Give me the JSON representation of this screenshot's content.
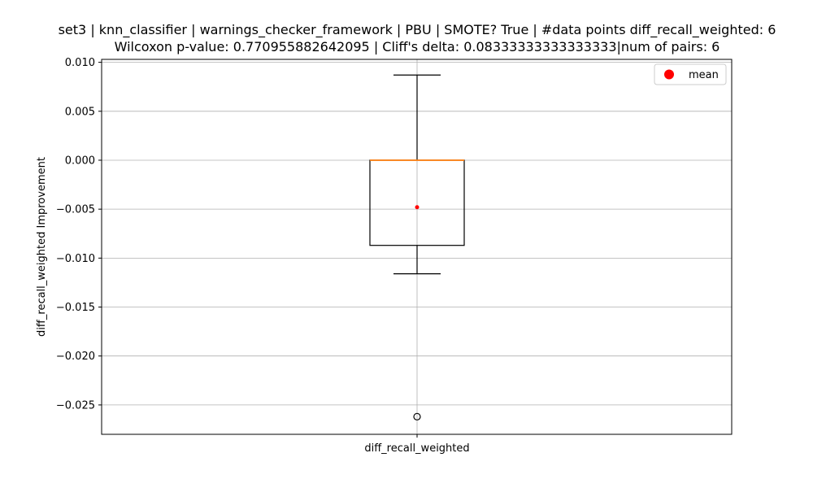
{
  "chart_data": {
    "type": "box",
    "title_lines": [
      "set3 | knn_classifier | warnings_checker_framework | PBU | SMOTE? True | #data points diff_recall_weighted: 6",
      "Wilcoxon p-value: 0.770955882642095 | Cliff's delta: 0.08333333333333333|num of pairs: 6"
    ],
    "xlabel": "",
    "ylabel": "diff_recall_weighted Improvement",
    "categories": [
      "diff_recall_weighted"
    ],
    "ylim": [
      -0.028,
      0.0103
    ],
    "yticks": [
      0.01,
      0.005,
      0.0,
      -0.005,
      -0.01,
      -0.015,
      -0.02,
      -0.025
    ],
    "ytick_labels": [
      "0.010",
      "0.005",
      "0.000",
      "−0.005",
      "−0.010",
      "−0.015",
      "−0.020",
      "−0.025"
    ],
    "grid": true,
    "legend": {
      "entries": [
        "mean"
      ],
      "placement": "top-right"
    },
    "box": {
      "whisker_high": 0.0087,
      "q3": 0.0,
      "median": 0.0,
      "q1": -0.0087,
      "whisker_low": -0.0116,
      "mean": -0.0048,
      "outliers": [
        -0.0262
      ]
    },
    "colors": {
      "box": "#000000",
      "median": "#ff7f0e",
      "mean": "#ff0000",
      "grid": "#b0b0b0"
    }
  }
}
